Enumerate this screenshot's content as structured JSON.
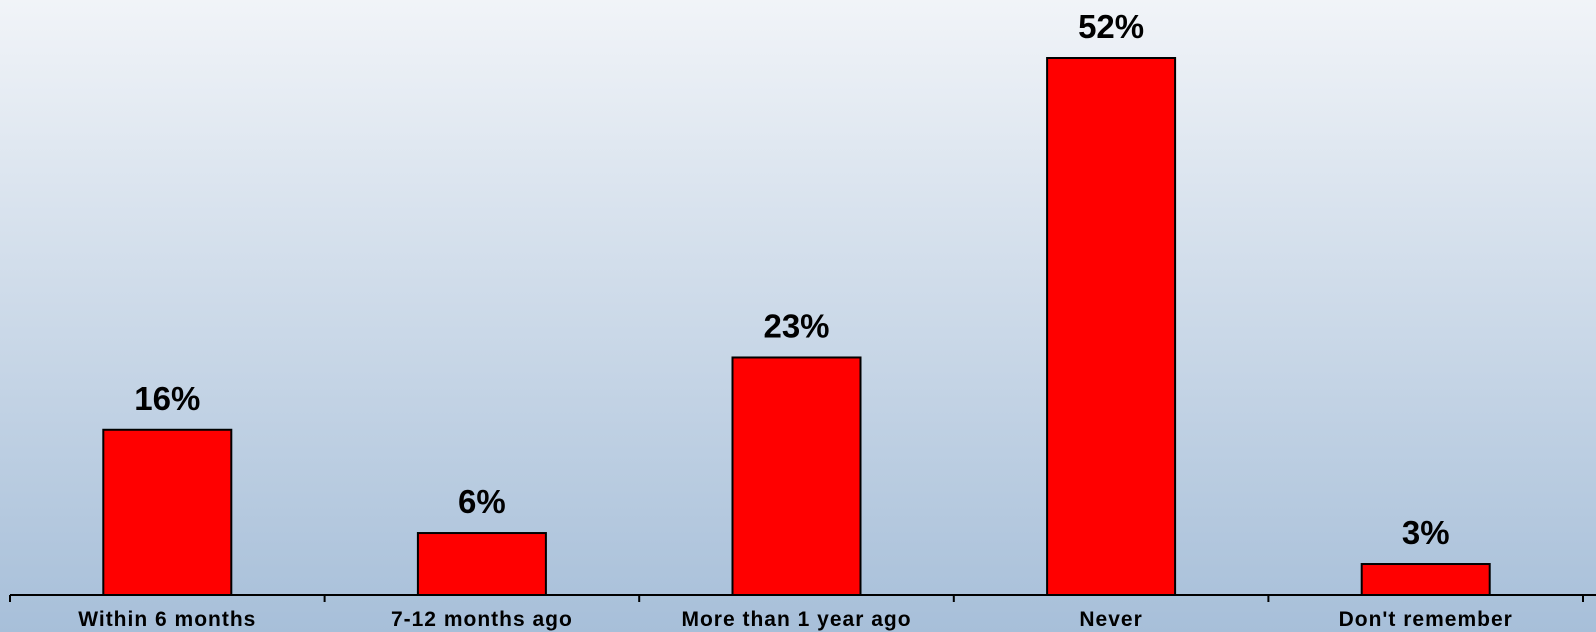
{
  "chart_data": {
    "type": "bar",
    "categories": [
      "Within 6 months",
      "7-12 months ago",
      "More than 1 year ago",
      "Never",
      "Don't remember"
    ],
    "values": [
      16,
      6,
      23,
      52,
      3
    ],
    "value_labels": [
      "16%",
      "6%",
      "23%",
      "52%",
      "3%"
    ],
    "color": "#ff0000"
  }
}
